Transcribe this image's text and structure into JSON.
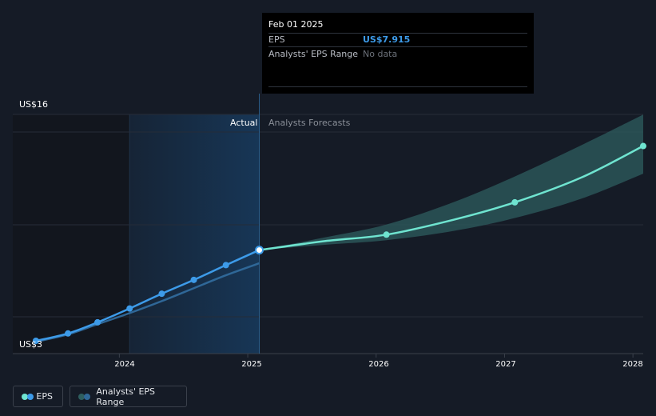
{
  "tooltip": {
    "date": "Feb 01 2025",
    "eps_label": "EPS",
    "eps_value": "US$7.915",
    "range_label": "Analysts' EPS Range",
    "range_value": "No data"
  },
  "regions": {
    "actual": "Actual",
    "forecast": "Analysts Forecasts"
  },
  "legend": {
    "eps": "EPS",
    "range": "Analysts' EPS Range"
  },
  "colors": {
    "background": "#151b26",
    "actual_line": "#3d9be9",
    "forecast_line": "#6fe4d0",
    "range_band": "#2e5e5f",
    "actual_range_line": "#2f6797",
    "legend_eps_left": "#6fe4d0",
    "legend_eps_right": "#3d9be9",
    "legend_range_left": "#2e5e5f",
    "legend_range_right": "#2f6797"
  },
  "chart_data": {
    "type": "line",
    "y_axis_labels": [
      "US$16",
      "US$3"
    ],
    "ylim": [
      3,
      16
    ],
    "x_tick_labels": [
      "2024",
      "2025",
      "2026",
      "2027",
      "2028"
    ],
    "x_ticks": [
      2024.0,
      2025.0,
      2026.0,
      2027.0,
      2028.0
    ],
    "xlim": [
      2023.17,
      2028.08
    ],
    "divider_x": 2025.09,
    "shade_start_x": 2024.08,
    "series": [
      {
        "name": "EPS",
        "role": "actual",
        "points": [
          [
            2023.35,
            3.0
          ],
          [
            2023.6,
            3.4
          ],
          [
            2023.83,
            4.0
          ],
          [
            2024.08,
            4.75
          ],
          [
            2024.33,
            5.55
          ],
          [
            2024.58,
            6.3
          ],
          [
            2024.83,
            7.1
          ],
          [
            2025.09,
            7.915
          ]
        ]
      },
      {
        "name": "EPS",
        "role": "forecast",
        "points": [
          [
            2025.09,
            7.915
          ],
          [
            2025.6,
            8.4
          ],
          [
            2026.08,
            8.75
          ],
          [
            2026.6,
            9.55
          ],
          [
            2027.08,
            10.5
          ],
          [
            2027.6,
            11.85
          ],
          [
            2028.08,
            13.55
          ]
        ]
      }
    ],
    "actual_range_lower": [
      [
        2023.35,
        2.95
      ],
      [
        2023.6,
        3.35
      ],
      [
        2023.83,
        3.9
      ],
      [
        2024.08,
        4.5
      ],
      [
        2024.33,
        5.15
      ],
      [
        2024.58,
        5.85
      ],
      [
        2024.83,
        6.55
      ],
      [
        2025.09,
        7.2
      ]
    ],
    "forecast_range": {
      "x": [
        2025.09,
        2025.6,
        2026.08,
        2026.6,
        2027.08,
        2027.6,
        2028.08
      ],
      "high": [
        7.915,
        8.6,
        9.3,
        10.5,
        11.9,
        13.6,
        15.25
      ],
      "low": [
        7.915,
        8.2,
        8.45,
        8.95,
        9.65,
        10.7,
        12.05
      ]
    },
    "grid": true
  }
}
